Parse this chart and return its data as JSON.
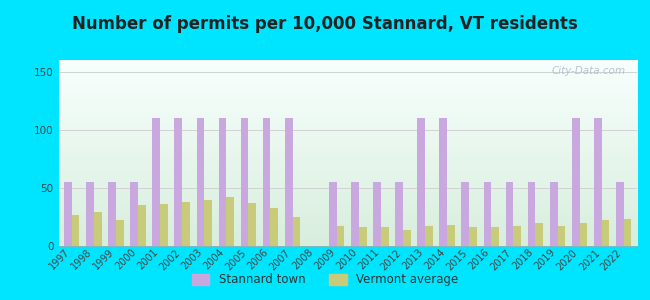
{
  "title": "Number of permits per 10,000 Stannard, VT residents",
  "years": [
    1997,
    1998,
    1999,
    2000,
    2001,
    2002,
    2003,
    2004,
    2005,
    2006,
    2007,
    2008,
    2009,
    2010,
    2011,
    2012,
    2013,
    2014,
    2015,
    2016,
    2017,
    2018,
    2019,
    2020,
    2021,
    2022
  ],
  "stannard": [
    55,
    55,
    55,
    55,
    110,
    110,
    110,
    110,
    110,
    110,
    110,
    0,
    55,
    55,
    55,
    55,
    110,
    110,
    55,
    55,
    55,
    55,
    55,
    110,
    110,
    55
  ],
  "vermont": [
    27,
    29,
    22,
    35,
    36,
    38,
    40,
    42,
    37,
    33,
    25,
    0,
    17,
    16,
    16,
    14,
    17,
    18,
    16,
    16,
    17,
    20,
    17,
    20,
    22,
    23
  ],
  "stannard_color": "#c9a8e0",
  "vermont_color": "#c8cb7a",
  "background_outer": "#00e5ff",
  "background_plot_top": "#f8fffe",
  "background_plot_bottom": "#d8eedd",
  "ylim": [
    0,
    160
  ],
  "yticks": [
    0,
    50,
    100,
    150
  ],
  "title_fontsize": 12,
  "legend_stannard": "Stannard town",
  "legend_vermont": "Vermont average",
  "watermark": "City-Data.com"
}
